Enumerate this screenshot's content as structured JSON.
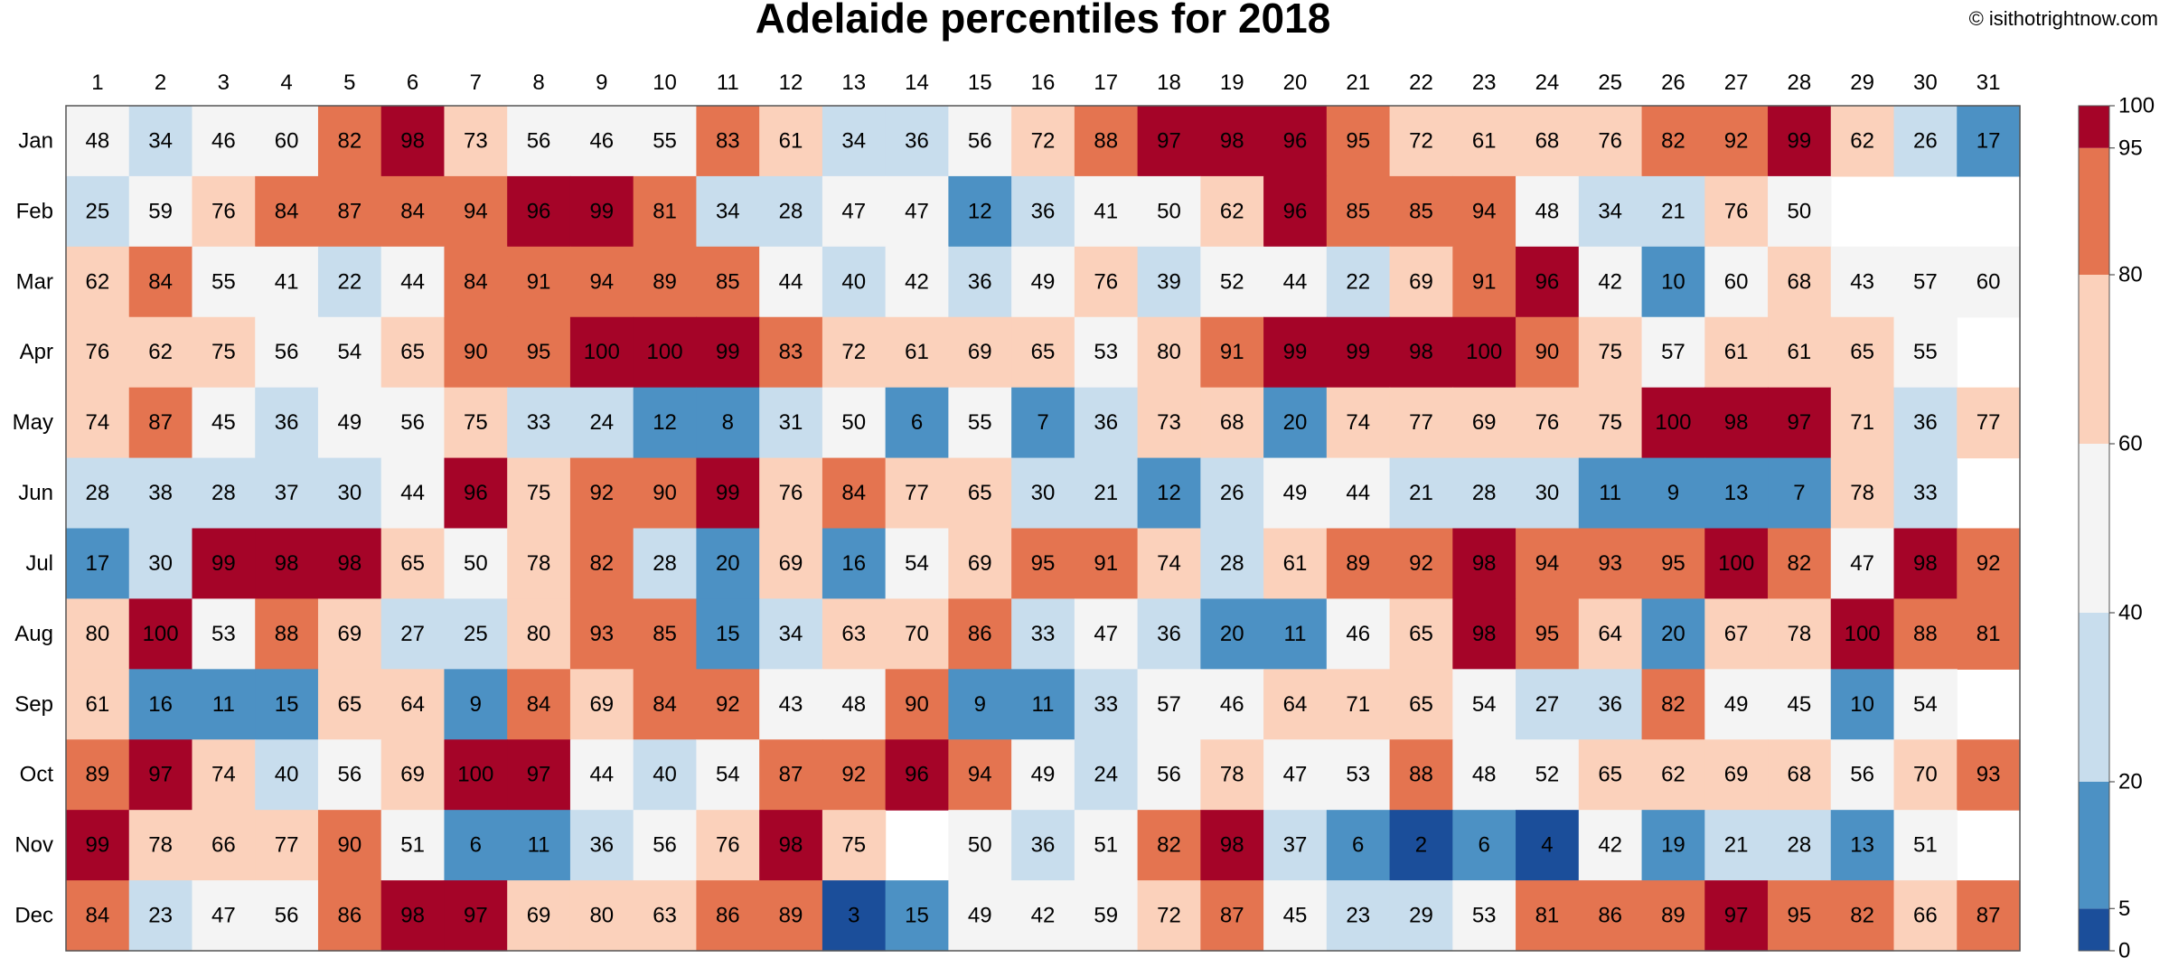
{
  "chart_data": {
    "type": "heatmap",
    "title": "Adelaide percentiles for 2018",
    "copyright": "© isithotrightnow.com",
    "xlabel": "",
    "ylabel": "",
    "columns": [
      "1",
      "2",
      "3",
      "4",
      "5",
      "6",
      "7",
      "8",
      "9",
      "10",
      "11",
      "12",
      "13",
      "14",
      "15",
      "16",
      "17",
      "18",
      "19",
      "20",
      "21",
      "22",
      "23",
      "24",
      "25",
      "26",
      "27",
      "28",
      "29",
      "30",
      "31"
    ],
    "rows": [
      "Jan",
      "Feb",
      "Mar",
      "Apr",
      "May",
      "Jun",
      "Jul",
      "Aug",
      "Sep",
      "Oct",
      "Nov",
      "Dec"
    ],
    "values": [
      [
        48,
        34,
        46,
        60,
        82,
        98,
        73,
        56,
        46,
        55,
        83,
        61,
        34,
        36,
        56,
        72,
        88,
        97,
        98,
        96,
        95,
        72,
        61,
        68,
        76,
        82,
        92,
        99,
        62,
        26,
        17
      ],
      [
        25,
        59,
        76,
        84,
        87,
        84,
        94,
        96,
        99,
        81,
        34,
        28,
        47,
        47,
        12,
        36,
        41,
        50,
        62,
        96,
        85,
        85,
        94,
        48,
        34,
        21,
        76,
        50,
        null,
        null,
        null
      ],
      [
        62,
        84,
        55,
        41,
        22,
        44,
        84,
        91,
        94,
        89,
        85,
        44,
        40,
        42,
        36,
        49,
        76,
        39,
        52,
        44,
        22,
        69,
        91,
        96,
        42,
        10,
        60,
        68,
        43,
        57,
        60
      ],
      [
        76,
        62,
        75,
        56,
        54,
        65,
        90,
        95,
        100,
        100,
        99,
        83,
        72,
        61,
        69,
        65,
        53,
        80,
        91,
        99,
        99,
        98,
        100,
        90,
        75,
        57,
        61,
        61,
        65,
        55,
        null
      ],
      [
        74,
        87,
        45,
        36,
        49,
        56,
        75,
        33,
        24,
        12,
        8,
        31,
        50,
        6,
        55,
        7,
        36,
        73,
        68,
        20,
        74,
        77,
        69,
        76,
        75,
        100,
        98,
        97,
        71,
        36,
        77
      ],
      [
        28,
        38,
        28,
        37,
        30,
        44,
        96,
        75,
        92,
        90,
        99,
        76,
        84,
        77,
        65,
        30,
        21,
        12,
        26,
        49,
        44,
        21,
        28,
        30,
        11,
        9,
        13,
        7,
        78,
        33,
        null
      ],
      [
        17,
        30,
        99,
        98,
        98,
        65,
        50,
        78,
        82,
        28,
        20,
        69,
        16,
        54,
        69,
        95,
        91,
        74,
        28,
        61,
        89,
        92,
        98,
        94,
        93,
        95,
        100,
        82,
        47,
        98,
        92
      ],
      [
        80,
        100,
        53,
        88,
        69,
        27,
        25,
        80,
        93,
        85,
        15,
        34,
        63,
        70,
        86,
        33,
        47,
        36,
        20,
        11,
        46,
        65,
        98,
        95,
        64,
        20,
        67,
        78,
        100,
        88,
        81
      ],
      [
        61,
        16,
        11,
        15,
        65,
        64,
        9,
        84,
        69,
        84,
        92,
        43,
        48,
        90,
        9,
        11,
        33,
        57,
        46,
        64,
        71,
        65,
        54,
        27,
        36,
        82,
        49,
        45,
        10,
        54,
        null
      ],
      [
        89,
        97,
        74,
        40,
        56,
        69,
        100,
        97,
        44,
        40,
        54,
        87,
        92,
        96,
        94,
        49,
        24,
        56,
        78,
        47,
        53,
        88,
        48,
        52,
        65,
        62,
        69,
        68,
        56,
        70,
        93
      ],
      [
        99,
        78,
        66,
        77,
        90,
        51,
        6,
        11,
        36,
        56,
        76,
        98,
        75,
        null,
        50,
        36,
        51,
        82,
        98,
        37,
        6,
        2,
        6,
        4,
        42,
        19,
        21,
        28,
        13,
        51,
        null
      ],
      [
        84,
        23,
        47,
        56,
        86,
        98,
        97,
        69,
        80,
        63,
        86,
        89,
        3,
        15,
        49,
        42,
        59,
        72,
        87,
        45,
        23,
        29,
        53,
        81,
        86,
        89,
        97,
        95,
        82,
        66,
        87
      ]
    ],
    "color_scale": {
      "bounds": [
        0,
        5,
        20,
        40,
        60,
        80,
        95,
        100
      ],
      "colors": [
        "#1b4e9a",
        "#4c91c4",
        "#c8dded",
        "#f4f4f4",
        "#fbd1bb",
        "#e47450",
        "#a50428"
      ],
      "tick_labels": [
        "0",
        "5",
        "20",
        "40",
        "60",
        "80",
        "95",
        "100"
      ]
    },
    "grid": false,
    "legend": "right colorbar"
  }
}
